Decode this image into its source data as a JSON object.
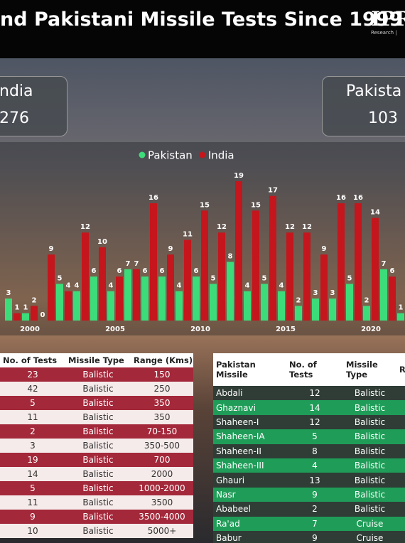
{
  "header": {
    "title": "nd Pakistani Missile Tests Since 1999",
    "logo": "IPR",
    "logo_sub": "Research |"
  },
  "cards": [
    {
      "label": "ndia",
      "value": 276
    },
    {
      "label": "Pakista",
      "value": 103
    }
  ],
  "chart_data": {
    "type": "bar",
    "categories": [
      null,
      "2000",
      null,
      null,
      null,
      null,
      "2005",
      null,
      null,
      null,
      null,
      "2010",
      null,
      null,
      null,
      null,
      "2015",
      null,
      null,
      null,
      null,
      "2020",
      null,
      null
    ],
    "series": [
      {
        "name": "Pakistan",
        "color": "#3ddc7a",
        "values": [
          3,
          1,
          0,
          5,
          4,
          6,
          4,
          7,
          6,
          6,
          4,
          6,
          5,
          8,
          4,
          5,
          4,
          2,
          3,
          3,
          5,
          2,
          7,
          1
        ]
      },
      {
        "name": "India",
        "color": "#c4161c",
        "values": [
          1,
          2,
          9,
          4,
          12,
          10,
          6,
          7,
          16,
          9,
          11,
          15,
          12,
          19,
          15,
          17,
          12,
          12,
          9,
          16,
          16,
          14,
          6,
          null
        ]
      }
    ],
    "legend": "top"
  },
  "india_table": {
    "columns": [
      "No. of Tests",
      "Missile Type",
      "Range (Kms)"
    ],
    "rows": [
      [
        "23",
        "Balistic",
        "150"
      ],
      [
        "42",
        "Balistic",
        "250"
      ],
      [
        "5",
        "Balistic",
        "350"
      ],
      [
        "11",
        "Balistic",
        "350"
      ],
      [
        "2",
        "Balistic",
        "70-150"
      ],
      [
        "3",
        "Balistic",
        "350-500"
      ],
      [
        "19",
        "Balistic",
        "700"
      ],
      [
        "14",
        "Balistic",
        "2000"
      ],
      [
        "5",
        "Balistic",
        "1000-2000"
      ],
      [
        "11",
        "Balistic",
        "3500"
      ],
      [
        "9",
        "Balistic",
        "3500-4000"
      ],
      [
        "10",
        "Balistic",
        "5000+"
      ]
    ]
  },
  "pakistan_table": {
    "columns": [
      "Pakistan Missile",
      "No. of Tests",
      "Missile Type",
      "Ra"
    ],
    "rows": [
      [
        "Abdali",
        "12",
        "Balistic"
      ],
      [
        "Ghaznavi",
        "14",
        "Balistic"
      ],
      [
        "Shaheen-I",
        "12",
        "Balistic"
      ],
      [
        "Shaheen-IA",
        "5",
        "Balistic"
      ],
      [
        "Shaheen-II",
        "8",
        "Balistic"
      ],
      [
        "Shaheen-III",
        "4",
        "Balistic"
      ],
      [
        "Ghauri",
        "13",
        "Balistic"
      ],
      [
        "Nasr",
        "9",
        "Balistic"
      ],
      [
        "Ababeel",
        "2",
        "Balistic"
      ],
      [
        "Ra'ad",
        "7",
        "Cruise"
      ],
      [
        "Babur",
        "9",
        "Cruise"
      ]
    ]
  }
}
